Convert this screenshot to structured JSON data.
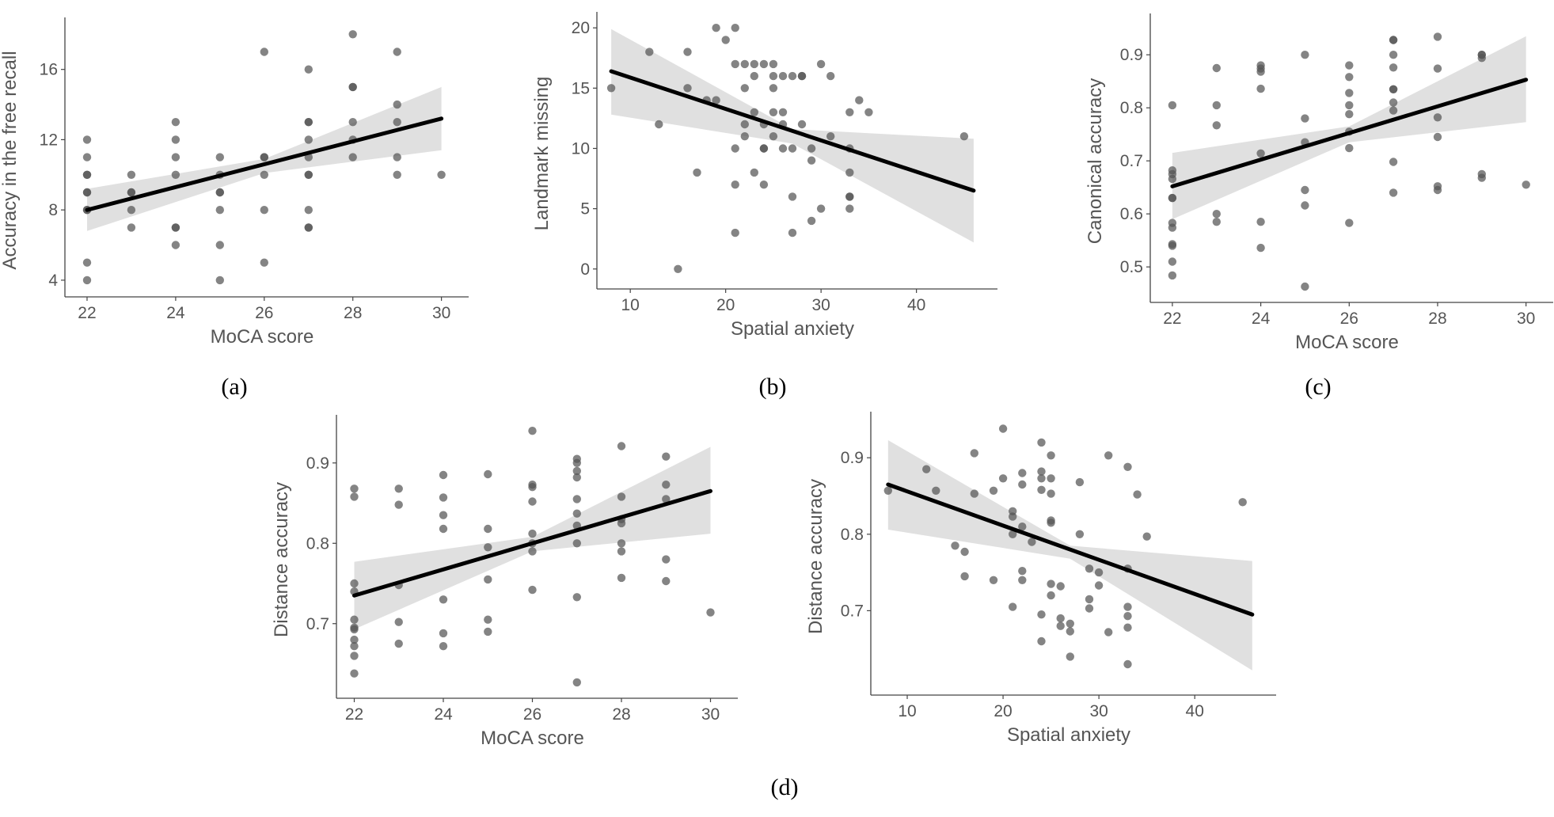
{
  "colors": {
    "point": "#555555",
    "fit_line": "#000000",
    "band": "#e0e0e0",
    "axis": "#444444",
    "text": "#555555"
  },
  "captions": {
    "a": "(a)",
    "b": "(b)",
    "c": "(c)",
    "d": "(d)"
  },
  "chart_data": [
    {
      "id": "a",
      "type": "scatter",
      "xlabel": "MoCA score",
      "ylabel": "Accuracy in the free recall",
      "xlim": [
        21.5,
        30.4
      ],
      "ylim": [
        3.5,
        18.6
      ],
      "xticks": [
        22,
        24,
        26,
        28,
        30
      ],
      "yticks": [
        4,
        8,
        12,
        16
      ],
      "fit": {
        "x": [
          22,
          30
        ],
        "y": [
          8.0,
          13.2
        ]
      },
      "band": {
        "upper": [
          [
            22,
            9.2
          ],
          [
            26,
            10.9
          ],
          [
            30,
            15.0
          ]
        ],
        "lower": [
          [
            22,
            6.8
          ],
          [
            26,
            10.1
          ],
          [
            30,
            11.4
          ]
        ]
      },
      "points": [
        [
          22,
          4
        ],
        [
          22,
          5
        ],
        [
          22,
          8
        ],
        [
          22,
          8
        ],
        [
          22,
          9
        ],
        [
          22,
          9
        ],
        [
          22,
          10
        ],
        [
          22,
          10
        ],
        [
          22,
          11
        ],
        [
          22,
          12
        ],
        [
          23,
          7
        ],
        [
          23,
          8
        ],
        [
          23,
          9
        ],
        [
          23,
          9
        ],
        [
          23,
          10
        ],
        [
          24,
          6
        ],
        [
          24,
          7
        ],
        [
          24,
          7
        ],
        [
          24,
          10
        ],
        [
          24,
          11
        ],
        [
          24,
          12
        ],
        [
          24,
          13
        ],
        [
          25,
          4
        ],
        [
          25,
          6
        ],
        [
          25,
          8
        ],
        [
          25,
          9
        ],
        [
          25,
          9
        ],
        [
          25,
          10
        ],
        [
          25,
          11
        ],
        [
          26,
          5
        ],
        [
          26,
          8
        ],
        [
          26,
          10
        ],
        [
          26,
          11
        ],
        [
          26,
          11
        ],
        [
          26,
          17
        ],
        [
          27,
          7
        ],
        [
          27,
          7
        ],
        [
          27,
          8
        ],
        [
          27,
          10
        ],
        [
          27,
          10
        ],
        [
          27,
          11
        ],
        [
          27,
          12
        ],
        [
          27,
          13
        ],
        [
          27,
          13
        ],
        [
          27,
          16
        ],
        [
          28,
          11
        ],
        [
          28,
          12
        ],
        [
          28,
          13
        ],
        [
          28,
          15
        ],
        [
          28,
          15
        ],
        [
          28,
          18
        ],
        [
          29,
          10
        ],
        [
          29,
          11
        ],
        [
          29,
          13
        ],
        [
          29,
          14
        ],
        [
          29,
          17
        ],
        [
          30,
          10
        ]
      ]
    },
    {
      "id": "b",
      "type": "scatter",
      "xlabel": "Spatial anxiety",
      "ylabel": "Landmark missing",
      "xlim": [
        6.5,
        47.5
      ],
      "ylim": [
        -1,
        20.8
      ],
      "xticks": [
        10,
        20,
        30,
        40
      ],
      "yticks": [
        0,
        5,
        10,
        15,
        20
      ],
      "fit": {
        "x": [
          8,
          46
        ],
        "y": [
          16.4,
          6.5
        ]
      },
      "band": {
        "upper": [
          [
            8,
            19.9
          ],
          [
            27,
            11.6
          ],
          [
            46,
            10.8
          ]
        ],
        "lower": [
          [
            8,
            12.8
          ],
          [
            27,
            10.4
          ],
          [
            46,
            2.2
          ]
        ]
      },
      "points": [
        [
          8,
          15
        ],
        [
          12,
          18
        ],
        [
          13,
          12
        ],
        [
          15,
          0
        ],
        [
          16,
          15
        ],
        [
          16,
          18
        ],
        [
          17,
          8
        ],
        [
          18,
          14
        ],
        [
          19,
          14
        ],
        [
          19,
          20
        ],
        [
          20,
          19
        ],
        [
          21,
          17
        ],
        [
          21,
          20
        ],
        [
          21,
          10
        ],
        [
          21,
          7
        ],
        [
          21,
          3
        ],
        [
          22,
          17
        ],
        [
          22,
          15
        ],
        [
          22,
          12
        ],
        [
          22,
          11
        ],
        [
          23,
          17
        ],
        [
          23,
          13
        ],
        [
          23,
          8
        ],
        [
          23,
          16
        ],
        [
          24,
          17
        ],
        [
          24,
          12
        ],
        [
          24,
          10
        ],
        [
          24,
          10
        ],
        [
          24,
          7
        ],
        [
          25,
          17
        ],
        [
          25,
          16
        ],
        [
          25,
          15
        ],
        [
          25,
          13
        ],
        [
          25,
          11
        ],
        [
          26,
          16
        ],
        [
          26,
          13
        ],
        [
          26,
          10
        ],
        [
          26,
          12
        ],
        [
          27,
          16
        ],
        [
          27,
          10
        ],
        [
          27,
          6
        ],
        [
          27,
          3
        ],
        [
          28,
          16
        ],
        [
          28,
          16
        ],
        [
          28,
          12
        ],
        [
          29,
          10
        ],
        [
          29,
          9
        ],
        [
          29,
          4
        ],
        [
          30,
          17
        ],
        [
          30,
          5
        ],
        [
          31,
          16
        ],
        [
          31,
          11
        ],
        [
          33,
          13
        ],
        [
          33,
          10
        ],
        [
          33,
          8
        ],
        [
          33,
          6
        ],
        [
          33,
          6
        ],
        [
          33,
          5
        ],
        [
          34,
          14
        ],
        [
          35,
          13
        ],
        [
          45,
          11
        ]
      ]
    },
    {
      "id": "c",
      "type": "scatter",
      "xlabel": "MoCA score",
      "ylabel": "Canonical accuracy",
      "xlim": [
        21.5,
        30.4
      ],
      "ylim": [
        0.448,
        0.966
      ],
      "xticks": [
        22,
        24,
        26,
        28,
        30
      ],
      "yticks": [
        0.5,
        0.6,
        0.7,
        0.8,
        0.9
      ],
      "fit": {
        "x": [
          22,
          30
        ],
        "y": [
          0.652,
          0.853
        ]
      },
      "band": {
        "upper": [
          [
            22,
            0.715
          ],
          [
            26,
            0.765
          ],
          [
            30,
            0.935
          ]
        ],
        "lower": [
          [
            22,
            0.59
          ],
          [
            26,
            0.735
          ],
          [
            30,
            0.773
          ]
        ]
      },
      "points": [
        [
          22,
          0.805
        ],
        [
          22,
          0.682
        ],
        [
          22,
          0.675
        ],
        [
          22,
          0.666
        ],
        [
          22,
          0.63
        ],
        [
          22,
          0.63
        ],
        [
          22,
          0.583
        ],
        [
          22,
          0.574
        ],
        [
          22,
          0.543
        ],
        [
          22,
          0.54
        ],
        [
          22,
          0.51
        ],
        [
          22,
          0.484
        ],
        [
          23,
          0.875
        ],
        [
          23,
          0.805
        ],
        [
          23,
          0.767
        ],
        [
          23,
          0.6
        ],
        [
          23,
          0.585
        ],
        [
          24,
          0.88
        ],
        [
          24,
          0.874
        ],
        [
          24,
          0.868
        ],
        [
          24,
          0.836
        ],
        [
          24,
          0.714
        ],
        [
          24,
          0.585
        ],
        [
          24,
          0.536
        ],
        [
          25,
          0.9
        ],
        [
          25,
          0.78
        ],
        [
          25,
          0.735
        ],
        [
          25,
          0.645
        ],
        [
          25,
          0.616
        ],
        [
          25,
          0.463
        ],
        [
          26,
          0.88
        ],
        [
          26,
          0.858
        ],
        [
          26,
          0.828
        ],
        [
          26,
          0.805
        ],
        [
          26,
          0.788
        ],
        [
          26,
          0.755
        ],
        [
          26,
          0.724
        ],
        [
          26,
          0.583
        ],
        [
          27,
          0.928
        ],
        [
          27,
          0.928
        ],
        [
          27,
          0.9
        ],
        [
          27,
          0.876
        ],
        [
          27,
          0.835
        ],
        [
          27,
          0.835
        ],
        [
          27,
          0.81
        ],
        [
          27,
          0.795
        ],
        [
          27,
          0.698
        ],
        [
          27,
          0.64
        ],
        [
          28,
          0.934
        ],
        [
          28,
          0.874
        ],
        [
          28,
          0.782
        ],
        [
          28,
          0.745
        ],
        [
          28,
          0.652
        ],
        [
          28,
          0.645
        ],
        [
          29,
          0.9
        ],
        [
          29,
          0.9
        ],
        [
          29,
          0.894
        ],
        [
          29,
          0.675
        ],
        [
          29,
          0.668
        ],
        [
          30,
          0.655
        ]
      ]
    },
    {
      "id": "d-left",
      "type": "scatter",
      "xlabel": "MoCA score",
      "ylabel": "Distance accuracy",
      "xlim": [
        21.6,
        30.4
      ],
      "ylim": [
        0.617,
        0.952
      ],
      "xticks": [
        22,
        24,
        26,
        28,
        30
      ],
      "yticks": [
        0.7,
        0.8,
        0.9
      ],
      "fit": {
        "x": [
          22,
          30
        ],
        "y": [
          0.735,
          0.865
        ]
      },
      "band": {
        "upper": [
          [
            22,
            0.777
          ],
          [
            26,
            0.808
          ],
          [
            30,
            0.92
          ]
        ],
        "lower": [
          [
            22,
            0.693
          ],
          [
            26,
            0.79
          ],
          [
            30,
            0.812
          ]
        ]
      },
      "points": [
        [
          22,
          0.868
        ],
        [
          22,
          0.858
        ],
        [
          22,
          0.75
        ],
        [
          22,
          0.74
        ],
        [
          22,
          0.705
        ],
        [
          22,
          0.695
        ],
        [
          22,
          0.693
        ],
        [
          22,
          0.68
        ],
        [
          22,
          0.672
        ],
        [
          22,
          0.66
        ],
        [
          22,
          0.638
        ],
        [
          23,
          0.868
        ],
        [
          23,
          0.848
        ],
        [
          23,
          0.748
        ],
        [
          23,
          0.702
        ],
        [
          23,
          0.675
        ],
        [
          24,
          0.885
        ],
        [
          24,
          0.857
        ],
        [
          24,
          0.835
        ],
        [
          24,
          0.818
        ],
        [
          24,
          0.73
        ],
        [
          24,
          0.688
        ],
        [
          24,
          0.672
        ],
        [
          25,
          0.886
        ],
        [
          25,
          0.818
        ],
        [
          25,
          0.795
        ],
        [
          25,
          0.755
        ],
        [
          25,
          0.705
        ],
        [
          25,
          0.69
        ],
        [
          26,
          0.94
        ],
        [
          26,
          0.873
        ],
        [
          26,
          0.87
        ],
        [
          26,
          0.852
        ],
        [
          26,
          0.812
        ],
        [
          26,
          0.8
        ],
        [
          26,
          0.79
        ],
        [
          26,
          0.742
        ],
        [
          27,
          0.905
        ],
        [
          27,
          0.9
        ],
        [
          27,
          0.89
        ],
        [
          27,
          0.882
        ],
        [
          27,
          0.855
        ],
        [
          27,
          0.837
        ],
        [
          27,
          0.822
        ],
        [
          27,
          0.8
        ],
        [
          27,
          0.733
        ],
        [
          27,
          0.627
        ],
        [
          28,
          0.921
        ],
        [
          28,
          0.858
        ],
        [
          28,
          0.83
        ],
        [
          28,
          0.825
        ],
        [
          28,
          0.8
        ],
        [
          28,
          0.79
        ],
        [
          28,
          0.757
        ],
        [
          29,
          0.908
        ],
        [
          29,
          0.873
        ],
        [
          29,
          0.855
        ],
        [
          29,
          0.78
        ],
        [
          29,
          0.753
        ],
        [
          30,
          0.714
        ]
      ]
    },
    {
      "id": "d-right",
      "type": "scatter",
      "xlabel": "Spatial anxiety",
      "ylabel": "Distance accuracy",
      "xlim": [
        6.2,
        47.5
      ],
      "ylim": [
        0.6,
        0.952
      ],
      "xticks": [
        10,
        20,
        30,
        40
      ],
      "yticks": [
        0.7,
        0.8,
        0.9
      ],
      "fit": {
        "x": [
          8,
          46
        ],
        "y": [
          0.865,
          0.695
        ]
      },
      "band": {
        "upper": [
          [
            8,
            0.923
          ],
          [
            27,
            0.785
          ],
          [
            46,
            0.765
          ]
        ],
        "lower": [
          [
            8,
            0.806
          ],
          [
            27,
            0.768
          ],
          [
            46,
            0.622
          ]
        ]
      },
      "points": [
        [
          8,
          0.857
        ],
        [
          12,
          0.885
        ],
        [
          13,
          0.857
        ],
        [
          15,
          0.785
        ],
        [
          16,
          0.777
        ],
        [
          16,
          0.745
        ],
        [
          17,
          0.906
        ],
        [
          17,
          0.853
        ],
        [
          19,
          0.857
        ],
        [
          19,
          0.74
        ],
        [
          20,
          0.938
        ],
        [
          20,
          0.873
        ],
        [
          21,
          0.83
        ],
        [
          21,
          0.823
        ],
        [
          21,
          0.8
        ],
        [
          21,
          0.705
        ],
        [
          22,
          0.88
        ],
        [
          22,
          0.865
        ],
        [
          22,
          0.81
        ],
        [
          22,
          0.752
        ],
        [
          22,
          0.74
        ],
        [
          23,
          0.79
        ],
        [
          24,
          0.92
        ],
        [
          24,
          0.882
        ],
        [
          24,
          0.873
        ],
        [
          24,
          0.858
        ],
        [
          24,
          0.695
        ],
        [
          24,
          0.66
        ],
        [
          25,
          0.903
        ],
        [
          25,
          0.873
        ],
        [
          25,
          0.853
        ],
        [
          25,
          0.818
        ],
        [
          25,
          0.815
        ],
        [
          25,
          0.735
        ],
        [
          25,
          0.72
        ],
        [
          26,
          0.732
        ],
        [
          26,
          0.69
        ],
        [
          26,
          0.68
        ],
        [
          27,
          0.683
        ],
        [
          27,
          0.673
        ],
        [
          27,
          0.64
        ],
        [
          28,
          0.868
        ],
        [
          28,
          0.8
        ],
        [
          29,
          0.755
        ],
        [
          29,
          0.715
        ],
        [
          29,
          0.703
        ],
        [
          30,
          0.75
        ],
        [
          30,
          0.733
        ],
        [
          31,
          0.903
        ],
        [
          31,
          0.672
        ],
        [
          33,
          0.888
        ],
        [
          33,
          0.755
        ],
        [
          33,
          0.705
        ],
        [
          33,
          0.693
        ],
        [
          33,
          0.678
        ],
        [
          33,
          0.63
        ],
        [
          34,
          0.852
        ],
        [
          35,
          0.797
        ],
        [
          45,
          0.842
        ]
      ]
    }
  ]
}
